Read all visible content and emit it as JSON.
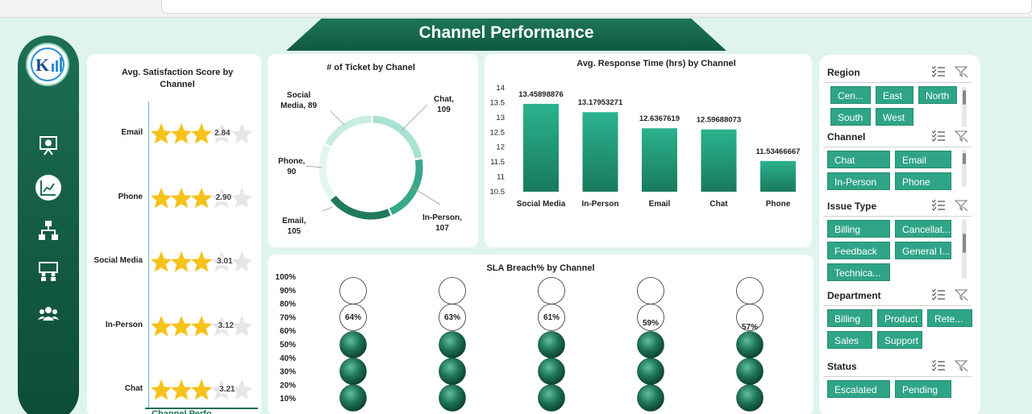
{
  "title": "Channel Performance",
  "nav": {
    "items": [
      {
        "name": "presentation-icon",
        "active": false
      },
      {
        "name": "line-chart-icon",
        "active": true
      },
      {
        "name": "flowchart-icon",
        "active": false
      },
      {
        "name": "meeting-icon",
        "active": false
      },
      {
        "name": "team-icon",
        "active": false
      }
    ]
  },
  "satisfaction": {
    "title_line1": "Avg. Satisfaction Score by",
    "title_line2": "Channel",
    "rows": [
      {
        "channel": "Email",
        "score": "2.84",
        "value": 2.84
      },
      {
        "channel": "Phone",
        "score": "2.90",
        "value": 2.9
      },
      {
        "channel": "Social Media",
        "score": "3.01",
        "value": 3.01
      },
      {
        "channel": "In-Person",
        "score": "3.12",
        "value": 3.12
      },
      {
        "channel": "Chat",
        "score": "3.21",
        "value": 3.21
      }
    ]
  },
  "tickets": {
    "title": "# of Ticket by Chanel",
    "slices": [
      {
        "name": "Chat",
        "value": 109,
        "color": "#a8e2d3",
        "label_line1": "Chat,",
        "label_line2": "109"
      },
      {
        "name": "In-Person",
        "value": 107,
        "color": "#39a88a",
        "label_line1": "In-Person,",
        "label_line2": "107"
      },
      {
        "name": "Email",
        "value": 105,
        "color": "#1f7a5e",
        "label_line1": "Email,",
        "label_line2": "105"
      },
      {
        "name": "Phone",
        "value": 90,
        "color": "#e3f5f0",
        "label_line1": "Phone,",
        "label_line2": "90"
      },
      {
        "name": "Social Media",
        "value": 89,
        "color": "#c9ede3",
        "label_line1": "Social",
        "label_line2": "Media,  89"
      }
    ]
  },
  "response": {
    "title": "Avg. Response Time (hrs) by Channel",
    "chart_data": {
      "type": "bar",
      "categories": [
        "Social Media",
        "In-Person",
        "Email",
        "Chat",
        "Phone"
      ],
      "values": [
        13.45898876,
        13.17953271,
        12.6367619,
        12.59688073,
        11.53466667
      ],
      "value_labels": [
        "13.45898876",
        "13.17953271",
        "12.6367619",
        "12.59688073",
        "11.53466667"
      ],
      "ylim": [
        10.5,
        14
      ],
      "yticks": [
        "14",
        "13.5",
        "13",
        "12.5",
        "12",
        "11.5",
        "11",
        "10.5"
      ]
    }
  },
  "sla": {
    "title": "SLA Breach% by Channel",
    "yticks": [
      "100%",
      "90%",
      "80%",
      "70%",
      "60%",
      "50%",
      "40%",
      "30%",
      "20%",
      "10%"
    ],
    "values": [
      "64%",
      "63%",
      "61%",
      "59%",
      "57%"
    ]
  },
  "filters": {
    "region": {
      "title": "Region",
      "buttons": [
        "Cen...",
        "East",
        "North",
        "South",
        "West"
      ]
    },
    "channel": {
      "title": "Channel",
      "buttons": [
        "Chat",
        "Email",
        "In-Person",
        "Phone"
      ]
    },
    "issue_type": {
      "title": "Issue Type",
      "buttons": [
        "Billing",
        "Cancellat...",
        "Feedback",
        "General I...",
        "Technica..."
      ]
    },
    "department": {
      "title": "Department",
      "buttons": [
        "Billing",
        "Product",
        "Rete...",
        "Sales",
        "Support"
      ]
    },
    "status": {
      "title": "Status",
      "buttons": [
        "Escalated",
        "Pending"
      ]
    }
  },
  "sheet_tab": "Channel Perfo..."
}
